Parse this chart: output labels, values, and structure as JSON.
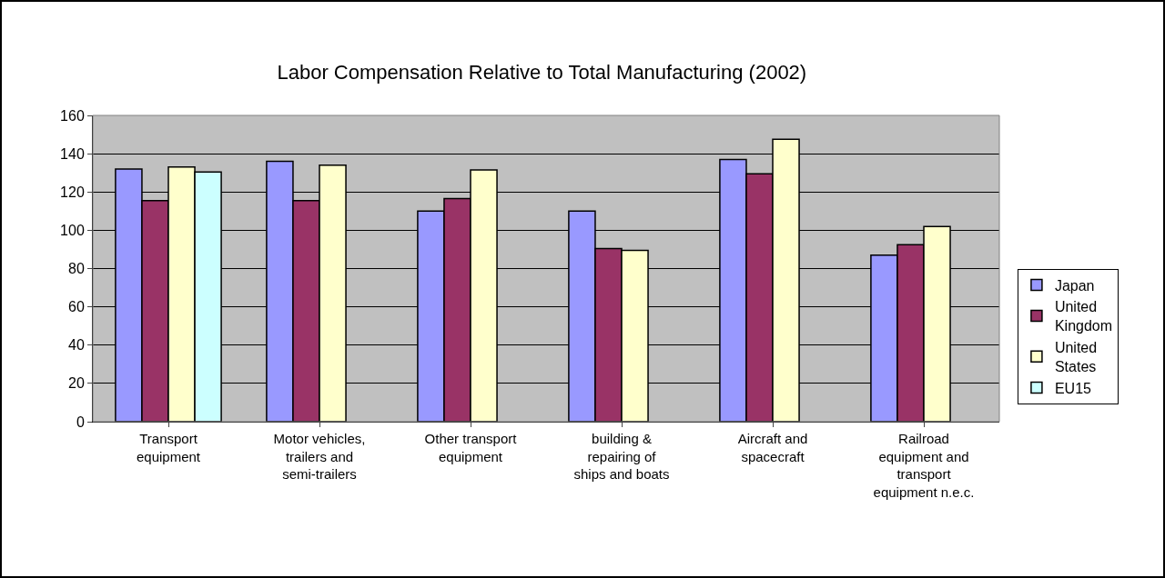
{
  "chart_data": {
    "type": "bar",
    "title": "Labor Compensation Relative to Total Manufacturing (2002)",
    "categories": [
      "Transport equipment",
      "Motor vehicles, trailers and semi-trailers",
      "Other transport equipment",
      "building & repairing of ships and boats",
      "Aircraft and spacecraft",
      "Railroad equipment and transport equipment n.e.c."
    ],
    "series": [
      {
        "name": "Japan",
        "color": "#9999ff",
        "values": [
          132,
          136,
          110,
          110,
          137,
          87
        ]
      },
      {
        "name": "United Kingdom",
        "color": "#993366",
        "values": [
          115.5,
          115.5,
          116.5,
          90.5,
          129.5,
          92.5
        ]
      },
      {
        "name": "United States",
        "color": "#ffffcc",
        "values": [
          133,
          134,
          131.5,
          89.5,
          147.5,
          102
        ]
      },
      {
        "name": "EU15",
        "color": "#ccffff",
        "values": [
          130.5,
          null,
          null,
          null,
          null,
          null
        ]
      }
    ],
    "ylim": [
      0,
      160
    ],
    "yticks": [
      0,
      20,
      40,
      60,
      80,
      100,
      120,
      140,
      160
    ],
    "grid": "y",
    "legend": "right"
  }
}
